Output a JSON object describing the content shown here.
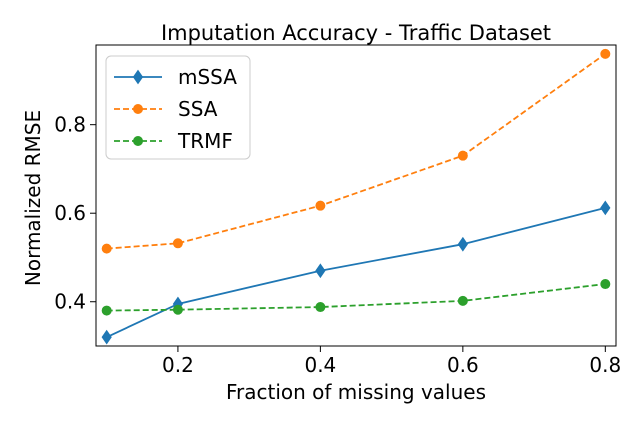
{
  "chart_data": {
    "type": "line",
    "title": "Imputation Accuracy - Traffic Dataset",
    "xlabel": "Fraction of missing values",
    "ylabel": "Normalized RMSE",
    "x": [
      0.1,
      0.2,
      0.4,
      0.6,
      0.8
    ],
    "xticks": [
      "0.2",
      "0.4",
      "0.6",
      "0.8"
    ],
    "yticks": [
      "0.4",
      "0.6",
      "0.8"
    ],
    "xlim": [
      0.085,
      0.815
    ],
    "ylim": [
      0.3,
      0.98
    ],
    "grid": false,
    "legend_position": "top-left",
    "series": [
      {
        "name": "mSSA",
        "color": "#1f77b4",
        "line_style": "solid",
        "marker": "diamond",
        "values": [
          0.32,
          0.395,
          0.47,
          0.53,
          0.612
        ]
      },
      {
        "name": "SSA",
        "color": "#ff7f0e",
        "line_style": "dashed",
        "marker": "circle",
        "values": [
          0.52,
          0.532,
          0.617,
          0.73,
          0.96
        ]
      },
      {
        "name": "TRMF",
        "color": "#2ca02c",
        "line_style": "dashed",
        "marker": "circle",
        "values": [
          0.38,
          0.382,
          0.388,
          0.402,
          0.44
        ]
      }
    ]
  }
}
